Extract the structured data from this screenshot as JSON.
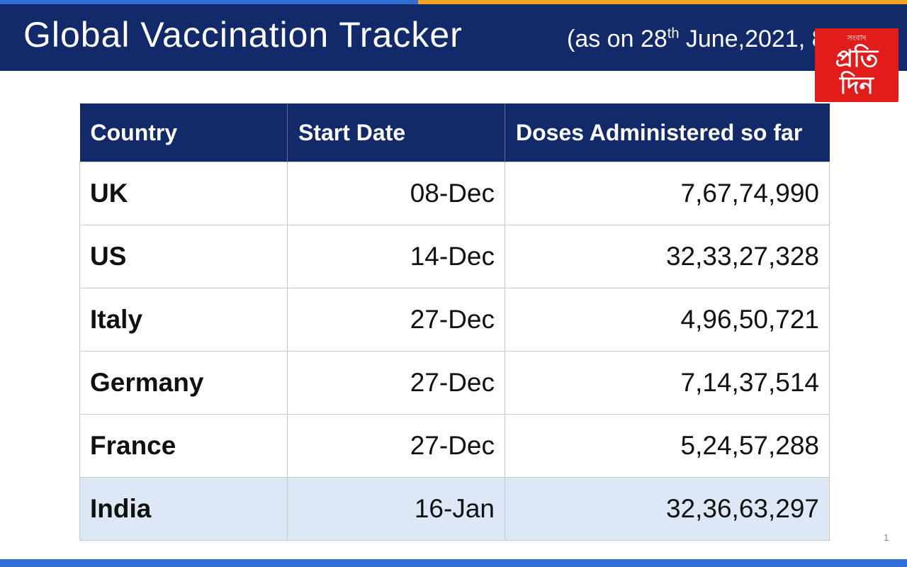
{
  "header": {
    "title": "Global Vaccination Tracker",
    "as_of_prefix": "(as on 28",
    "as_of_sup": "th",
    "as_of_suffix": " June,2021, 8"
  },
  "logo": {
    "tag": "সংবাদ",
    "line1": "প্রতি",
    "line2": "দিন"
  },
  "table": {
    "columns": [
      "Country",
      "Start Date",
      "Doses Administered so far"
    ],
    "rows": [
      {
        "country": "UK",
        "start_date": "08-Dec",
        "doses": "7,67,74,990"
      },
      {
        "country": "US",
        "start_date": "14-Dec",
        "doses": "32,33,27,328"
      },
      {
        "country": "Italy",
        "start_date": "27-Dec",
        "doses": "4,96,50,721"
      },
      {
        "country": "Germany",
        "start_date": "27-Dec",
        "doses": "7,14,37,514"
      },
      {
        "country": "France",
        "start_date": "27-Dec",
        "doses": "5,24,57,288"
      },
      {
        "country": "India",
        "start_date": "16-Jan",
        "doses": "32,36,63,297"
      }
    ],
    "highlight_row_color": "#dce8f6"
  },
  "page_number": "1",
  "colors": {
    "header_bg": "#12296a",
    "accent_blue": "#2e6fd8",
    "accent_orange": "#f2a21e",
    "logo_red": "#e21b1b"
  }
}
